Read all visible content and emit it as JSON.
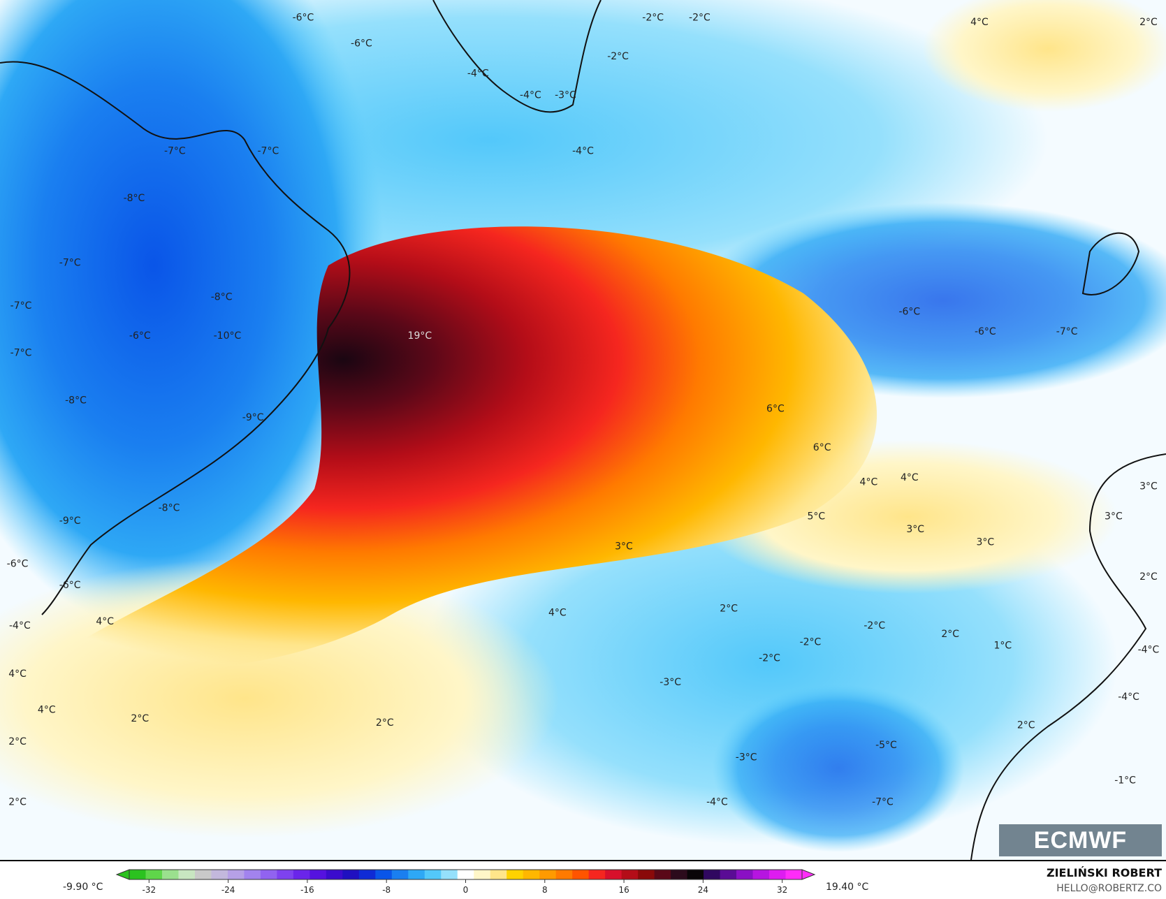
{
  "map": {
    "variable_unit": "°C",
    "labels": [
      {
        "t": "-6°C",
        "lon": 0.26,
        "lat": 0.02
      },
      {
        "t": "-6°C",
        "lon": 0.31,
        "lat": 0.05
      },
      {
        "t": "-2°C",
        "lon": 0.56,
        "lat": 0.02
      },
      {
        "t": "-2°C",
        "lon": 0.6,
        "lat": 0.02
      },
      {
        "t": "-2°C",
        "lon": 0.53,
        "lat": 0.065
      },
      {
        "t": "4°C",
        "lon": 0.84,
        "lat": 0.025
      },
      {
        "t": "2°C",
        "lon": 0.985,
        "lat": 0.025
      },
      {
        "t": "-4°C",
        "lon": 0.41,
        "lat": 0.085
      },
      {
        "t": "-4°C",
        "lon": 0.455,
        "lat": 0.11
      },
      {
        "t": "-3°C",
        "lon": 0.485,
        "lat": 0.11
      },
      {
        "t": "-7°C",
        "lon": 0.15,
        "lat": 0.175
      },
      {
        "t": "-7°C",
        "lon": 0.23,
        "lat": 0.175
      },
      {
        "t": "-4°C",
        "lon": 0.5,
        "lat": 0.175
      },
      {
        "t": "-8°C",
        "lon": 0.115,
        "lat": 0.23
      },
      {
        "t": "-7°C",
        "lon": 0.06,
        "lat": 0.305
      },
      {
        "t": "-8°C",
        "lon": 0.19,
        "lat": 0.345
      },
      {
        "t": "-7°C",
        "lon": 0.018,
        "lat": 0.355
      },
      {
        "t": "-6°C",
        "lon": 0.12,
        "lat": 0.39
      },
      {
        "t": "-10°C",
        "lon": 0.195,
        "lat": 0.39
      },
      {
        "t": "19°C",
        "lon": 0.36,
        "lat": 0.39
      },
      {
        "t": "-7°C",
        "lon": 0.018,
        "lat": 0.41
      },
      {
        "t": "-6°C",
        "lon": 0.78,
        "lat": 0.362
      },
      {
        "t": "-6°C",
        "lon": 0.845,
        "lat": 0.385
      },
      {
        "t": "-7°C",
        "lon": 0.915,
        "lat": 0.385
      },
      {
        "t": "-8°C",
        "lon": 0.065,
        "lat": 0.465
      },
      {
        "t": "-9°C",
        "lon": 0.217,
        "lat": 0.485
      },
      {
        "t": "6°C",
        "lon": 0.665,
        "lat": 0.475
      },
      {
        "t": "6°C",
        "lon": 0.705,
        "lat": 0.52
      },
      {
        "t": "4°C",
        "lon": 0.745,
        "lat": 0.56
      },
      {
        "t": "4°C",
        "lon": 0.78,
        "lat": 0.555
      },
      {
        "t": "3°C",
        "lon": 0.985,
        "lat": 0.565
      },
      {
        "t": "-8°C",
        "lon": 0.145,
        "lat": 0.59
      },
      {
        "t": "-9°C",
        "lon": 0.06,
        "lat": 0.605
      },
      {
        "t": "5°C",
        "lon": 0.7,
        "lat": 0.6
      },
      {
        "t": "3°C",
        "lon": 0.955,
        "lat": 0.6
      },
      {
        "t": "3°C",
        "lon": 0.785,
        "lat": 0.615
      },
      {
        "t": "3°C",
        "lon": 0.535,
        "lat": 0.635
      },
      {
        "t": "3°C",
        "lon": 0.845,
        "lat": 0.63
      },
      {
        "t": "-6°C",
        "lon": 0.015,
        "lat": 0.655
      },
      {
        "t": "-6°C",
        "lon": 0.06,
        "lat": 0.68
      },
      {
        "t": "2°C",
        "lon": 0.985,
        "lat": 0.67
      },
      {
        "t": "2°C",
        "lon": 0.625,
        "lat": 0.707
      },
      {
        "t": "4°C",
        "lon": 0.478,
        "lat": 0.712
      },
      {
        "t": "4°C",
        "lon": 0.09,
        "lat": 0.722
      },
      {
        "t": "-4°C",
        "lon": 0.017,
        "lat": 0.727
      },
      {
        "t": "-2°C",
        "lon": 0.75,
        "lat": 0.727
      },
      {
        "t": "2°C",
        "lon": 0.815,
        "lat": 0.737
      },
      {
        "t": "-2°C",
        "lon": 0.695,
        "lat": 0.746
      },
      {
        "t": "1°C",
        "lon": 0.86,
        "lat": 0.75
      },
      {
        "t": "-4°C",
        "lon": 0.985,
        "lat": 0.755
      },
      {
        "t": "-2°C",
        "lon": 0.66,
        "lat": 0.765
      },
      {
        "t": "4°C",
        "lon": 0.015,
        "lat": 0.783
      },
      {
        "t": "-3°C",
        "lon": 0.575,
        "lat": 0.793
      },
      {
        "t": "4°C",
        "lon": 0.04,
        "lat": 0.825
      },
      {
        "t": "2°C",
        "lon": 0.12,
        "lat": 0.835
      },
      {
        "t": "2°C",
        "lon": 0.33,
        "lat": 0.84
      },
      {
        "t": "-4°C",
        "lon": 0.968,
        "lat": 0.81
      },
      {
        "t": "2°C",
        "lon": 0.88,
        "lat": 0.843
      },
      {
        "t": "2°C",
        "lon": 0.015,
        "lat": 0.862
      },
      {
        "t": "-5°C",
        "lon": 0.76,
        "lat": 0.866
      },
      {
        "t": "-3°C",
        "lon": 0.64,
        "lat": 0.88
      },
      {
        "t": "-1°C",
        "lon": 0.965,
        "lat": 0.907
      },
      {
        "t": "2°C",
        "lon": 0.015,
        "lat": 0.932
      },
      {
        "t": "-4°C",
        "lon": 0.615,
        "lat": 0.932
      },
      {
        "t": "-7°C",
        "lon": 0.757,
        "lat": 0.932
      }
    ]
  },
  "logo": "ECMWF",
  "colorbar": {
    "min_label": "-9.90 °C",
    "max_label": "19.40 °C",
    "ticks": [
      "-32",
      "-24",
      "-16",
      "-8",
      "0",
      "8",
      "16",
      "24",
      "32"
    ],
    "range": [
      -34,
      34
    ],
    "colors": [
      "#2bc21f",
      "#5fd64a",
      "#9be08e",
      "#c8e6c1",
      "#c9c9c9",
      "#c3b8dc",
      "#b6a0e6",
      "#a283ee",
      "#9163f0",
      "#7e42ef",
      "#6a25ea",
      "#5512df",
      "#3b0ccd",
      "#1f10c0",
      "#0f2bd5",
      "#0a55e8",
      "#1a7ff0",
      "#2ea8f5",
      "#53c8fa",
      "#95e0fc",
      "#ffffff",
      "#fff6c8",
      "#ffe58a",
      "#ffd200",
      "#ffb700",
      "#ff9a00",
      "#ff7a00",
      "#ff5400",
      "#f5261f",
      "#d8102b",
      "#b40d18",
      "#8a0a0a",
      "#5a0818",
      "#2c0b1c",
      "#0a0508",
      "#300860",
      "#5a0c95",
      "#8a10c4",
      "#b615e0",
      "#de1cf0",
      "#ff2cf8"
    ]
  },
  "credits": {
    "author": "ZIELIŃSKI ROBERT",
    "email": "HELLO@ROBERTZ.CO"
  }
}
